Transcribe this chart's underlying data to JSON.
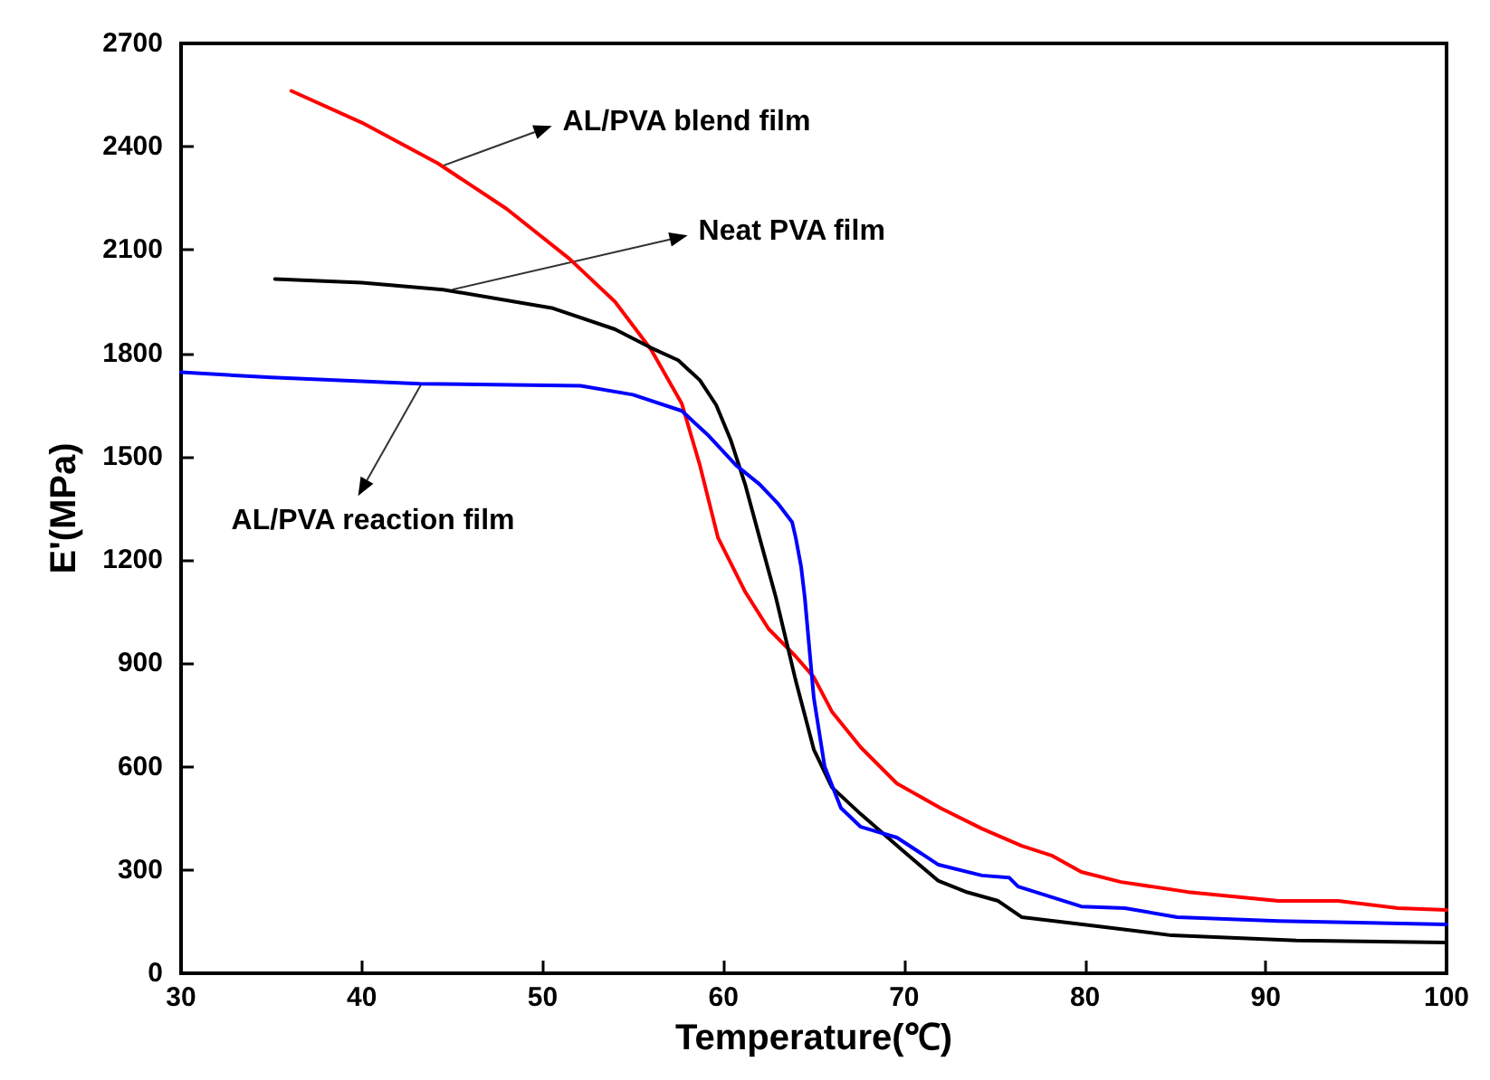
{
  "chart_data": {
    "type": "line",
    "xlabel": "Temperature(℃)",
    "ylabel": "E'(MPa)",
    "xlim": [
      30,
      100
    ],
    "xticks": [
      30,
      40,
      50,
      60,
      70,
      80,
      90,
      100
    ],
    "ylim": [
      0,
      2700
    ],
    "yticks": [
      0,
      300,
      600,
      900,
      1200,
      1500,
      1800,
      2100,
      2400,
      2700
    ],
    "grid": false,
    "marker": "none",
    "line_style": "solid",
    "series": [
      {
        "color": "#ff0000",
        "x": [
          36.1,
          40,
          44.2,
          48,
          51.5,
          54,
          56,
          57.7,
          58.7,
          59.7,
          61.2,
          62.5,
          64,
          65,
          66,
          67.6,
          69.6,
          72,
          74.3,
          76.5,
          78.2,
          79.8,
          82,
          85.7,
          90.7,
          94,
          97.3,
          100
        ],
        "values": [
          2562,
          2470,
          2352,
          2220,
          2074,
          1950,
          1811,
          1654,
          1475,
          1265,
          1108,
          1000,
          920,
          860,
          760,
          656,
          551,
          480,
          420,
          370,
          341,
          294,
          265,
          236,
          210,
          210,
          189,
          184
        ]
      },
      {
        "color": "#000000",
        "x": [
          35.2,
          40,
          44.5,
          50.5,
          54,
          56,
          57.5,
          58.7,
          59.6,
          60.4,
          61.2,
          62,
          62.9,
          64,
          65,
          66,
          67.6,
          69.9,
          71.9,
          73.5,
          75.2,
          76.5,
          80.8,
          84.8,
          91.7,
          100
        ],
        "values": [
          2016,
          2005,
          1985,
          1932,
          1870,
          1816,
          1780,
          1722,
          1650,
          1549,
          1420,
          1265,
          1092,
          850,
          650,
          540,
          462,
          357,
          268,
          235,
          210,
          163,
          136,
          110,
          95,
          89
        ]
      },
      {
        "color": "#0000ff",
        "x": [
          30,
          35,
          43.2,
          52.1,
          55,
          57.7,
          59.2,
          60.7,
          62,
          63,
          63.8,
          64,
          64.3,
          64.5,
          65,
          65.6,
          66.5,
          67.6,
          69.6,
          71.9,
          74.3,
          75.8,
          76.3,
          79.8,
          82.2,
          85.1,
          90.7,
          100
        ],
        "values": [
          1745,
          1730,
          1712,
          1706,
          1680,
          1633,
          1560,
          1475,
          1420,
          1365,
          1310,
          1265,
          1180,
          1092,
          800,
          600,
          480,
          425,
          394,
          315,
          284,
          278,
          252,
          194,
          189,
          163,
          152,
          142
        ]
      }
    ],
    "annotations": [
      {
        "text": "AL/PVA blend film",
        "x": 44.5,
        "y": 2345
      },
      {
        "text": "Neat PVA film",
        "x": 45,
        "y": 1985
      },
      {
        "text": "AL/PVA reaction film",
        "x": 43.3,
        "y": 1712
      }
    ]
  }
}
